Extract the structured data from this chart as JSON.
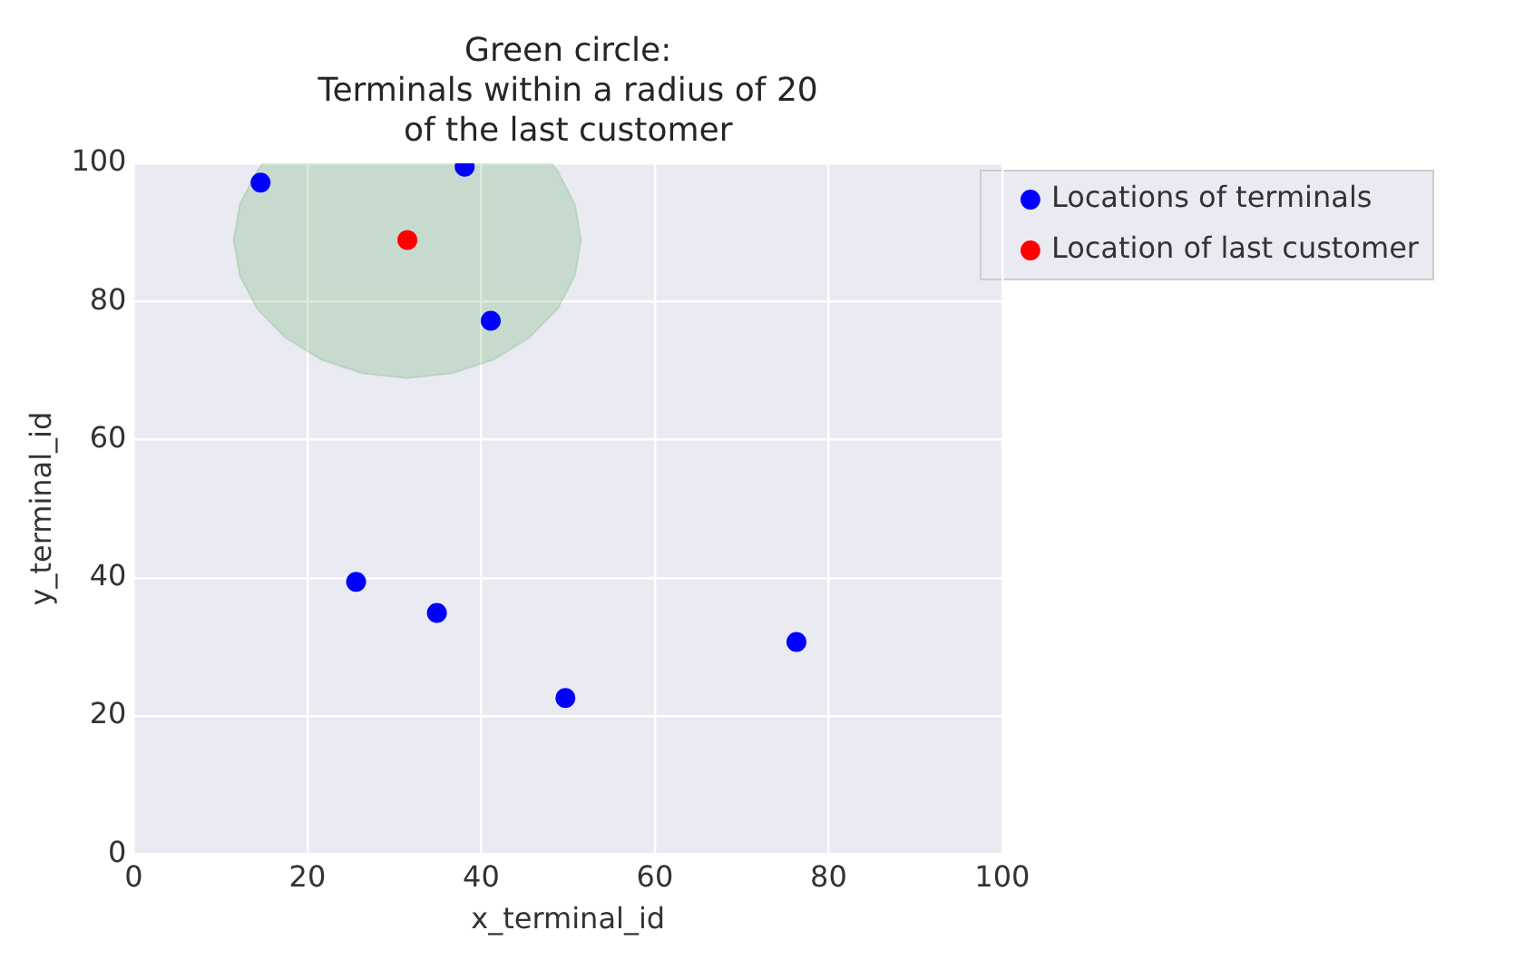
{
  "chart_data": {
    "type": "scatter",
    "title": "Green circle:\nTerminals within a radius of 20\nof the last customer",
    "xlabel": "x_terminal_id",
    "ylabel": "y_terminal_id",
    "series": [
      {
        "name": "Locations of terminals",
        "color": "#0000ff",
        "x": [
          14.6,
          38.1,
          41.1,
          25.6,
          34.9,
          49.7,
          76.3
        ],
        "values": [
          97.2,
          99.5,
          77.2,
          39.4,
          34.9,
          22.6,
          30.7
        ]
      },
      {
        "name": "Location of last customer",
        "color": "#ff0000",
        "x": [
          31.5
        ],
        "values": [
          88.9
        ]
      },
      {
        "type": "area",
        "marker": "none",
        "color": "#008000",
        "x": [
          48.1,
          48.8,
          50.8,
          51.5,
          50.8,
          48.8,
          45.6,
          41.5,
          36.7,
          31.5,
          26.3,
          21.5,
          17.4,
          14.2,
          12.2,
          11.5,
          12.2,
          14.2,
          14.9
        ],
        "values": [
          100,
          98.9,
          94.1,
          88.9,
          83.7,
          78.9,
          74.8,
          71.6,
          69.6,
          68.9,
          69.6,
          71.6,
          74.8,
          78.9,
          83.7,
          88.9,
          94.1,
          98.9,
          100
        ]
      }
    ],
    "xlim": [
      0,
      100
    ],
    "ylim": [
      0,
      100
    ],
    "xticks": [
      0,
      20,
      40,
      60,
      80,
      100
    ],
    "yticks": [
      0,
      20,
      40,
      60,
      80,
      100
    ],
    "grid": true,
    "legend": "top right",
    "marker": "circle"
  }
}
